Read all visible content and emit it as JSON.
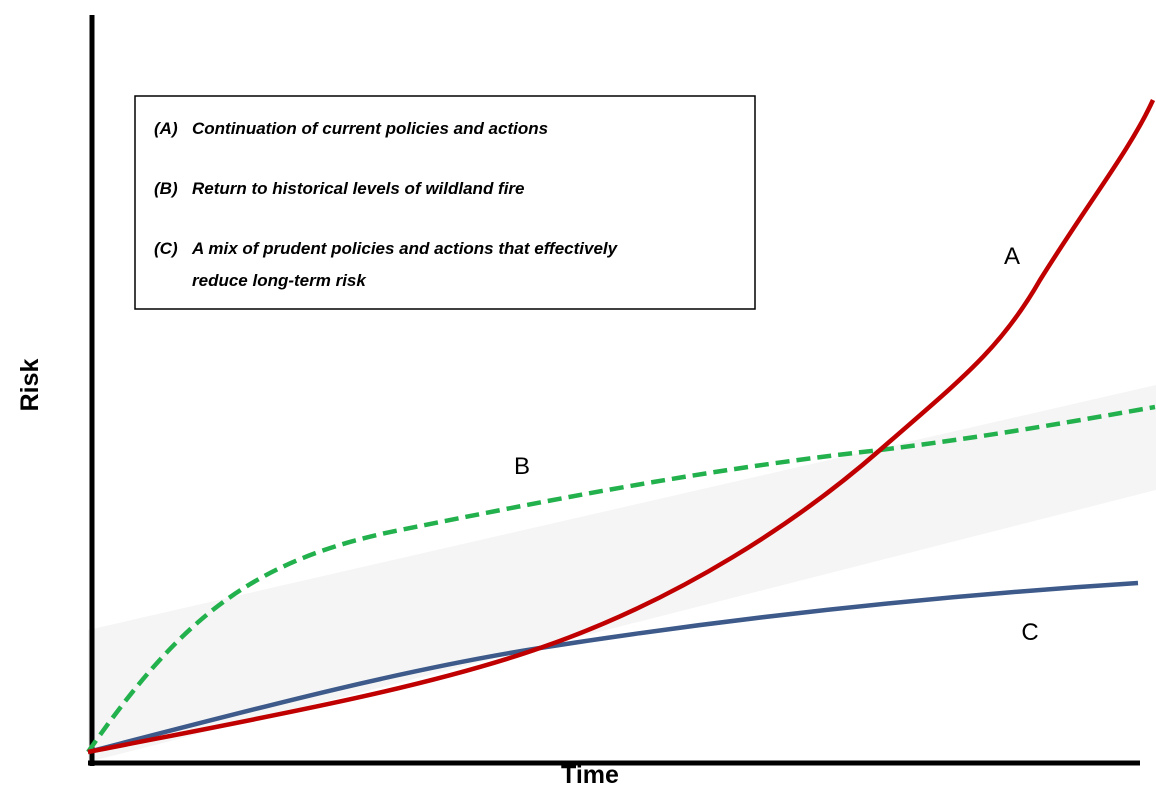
{
  "axes": {
    "y_label": "Risk",
    "x_label": "Time"
  },
  "legend": {
    "items": [
      {
        "key": "(A)",
        "lines": [
          "Continuation of current policies and actions"
        ]
      },
      {
        "key": "(B)",
        "lines": [
          "Return to historical levels of wildland fire"
        ]
      },
      {
        "key": "(C)",
        "lines": [
          "A mix of prudent policies and actions that effectively",
          "reduce long-term risk"
        ]
      }
    ]
  },
  "curves": [
    {
      "label": "A"
    },
    {
      "label": "B"
    },
    {
      "label": "C"
    }
  ]
}
